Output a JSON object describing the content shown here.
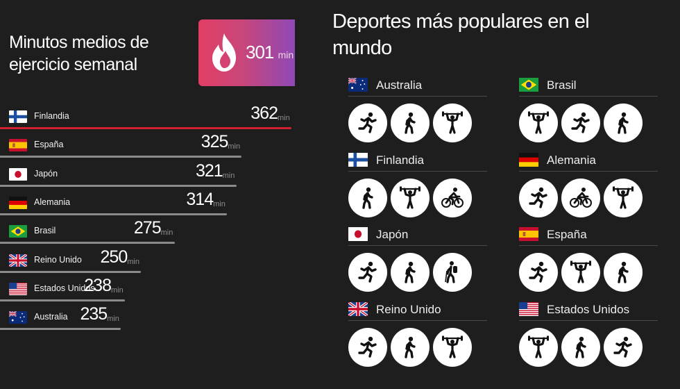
{
  "left": {
    "title": "Minutos medios de ejercicio semanal",
    "average": {
      "value": "301",
      "unit": "min"
    }
  },
  "chart_data": {
    "type": "bar",
    "title": "Minutos medios de ejercicio semanal",
    "unit": "min",
    "categories": [
      "Finlandia",
      "España",
      "Japón",
      "Alemania",
      "Brasil",
      "Reino Unido",
      "Estados Unidos",
      "Australia"
    ],
    "values": [
      362,
      325,
      321,
      314,
      275,
      250,
      238,
      235
    ],
    "flags": [
      "finland",
      "spain",
      "japan",
      "germany",
      "brazil",
      "uk",
      "usa",
      "australia"
    ],
    "highlight_color": "#d21f33",
    "bar_color": "#8a8a8a"
  },
  "right": {
    "title": "Deportes más populares en el mundo",
    "countries": [
      {
        "name": "Australia",
        "flag": "australia",
        "sports": [
          "running-icon",
          "walking-icon",
          "weightlifting-icon"
        ]
      },
      {
        "name": "Brasil",
        "flag": "brazil",
        "sports": [
          "weightlifting-icon",
          "running-icon",
          "walking-icon"
        ]
      },
      {
        "name": "Finlandia",
        "flag": "finland",
        "sports": [
          "walking-icon",
          "weightlifting-icon",
          "cycling-icon"
        ]
      },
      {
        "name": "Alemania",
        "flag": "germany",
        "sports": [
          "running-icon",
          "cycling-icon",
          "weightlifting-icon"
        ]
      },
      {
        "name": "Japón",
        "flag": "japan",
        "sports": [
          "running-icon",
          "walking-icon",
          "hiking-icon"
        ]
      },
      {
        "name": "España",
        "flag": "spain",
        "sports": [
          "running-icon",
          "weightlifting-icon",
          "walking-icon"
        ]
      },
      {
        "name": "Reino Unido",
        "flag": "uk",
        "sports": [
          "running-icon",
          "walking-icon",
          "weightlifting-icon"
        ]
      },
      {
        "name": "Estados Unidos",
        "flag": "usa",
        "sports": [
          "weightlifting-icon",
          "walking-icon",
          "running-icon"
        ]
      }
    ]
  }
}
